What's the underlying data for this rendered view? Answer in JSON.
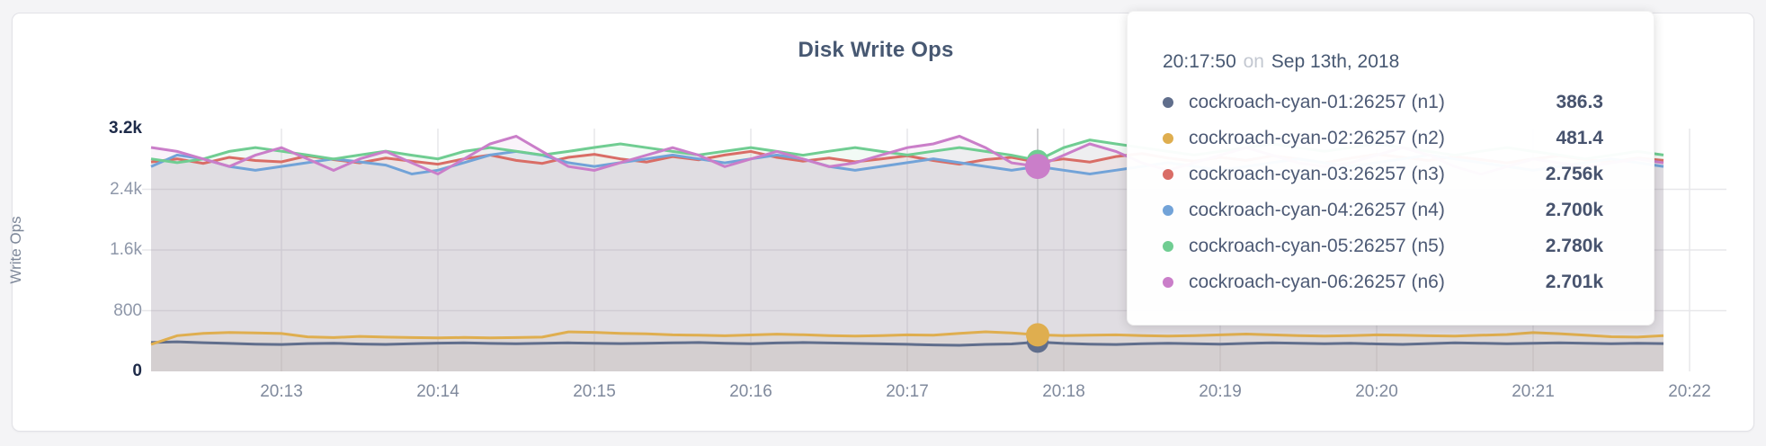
{
  "card": {
    "background": "#ffffff"
  },
  "tooltip": {
    "time": "20:17:50",
    "connector": "on",
    "date": "Sep 13th, 2018"
  },
  "chart_data": {
    "type": "line",
    "title": "Disk Write Ops",
    "ylabel": "Write Ops",
    "ylim": [
      0,
      3200
    ],
    "grid": true,
    "legend_position": "tooltip-overlay",
    "x_start_time": "20:12:10",
    "sample_interval_seconds": 10,
    "hover_time": "20:17:50",
    "x_ticks": [
      "20:13",
      "20:14",
      "20:15",
      "20:16",
      "20:17",
      "20:18",
      "20:19",
      "20:20",
      "20:21",
      "20:22"
    ],
    "y_ticks": [
      {
        "label": "3.2k",
        "value": 3200,
        "strong": true
      },
      {
        "label": "2.4k",
        "value": 2400,
        "strong": false
      },
      {
        "label": "1.6k",
        "value": 1600,
        "strong": false
      },
      {
        "label": "800",
        "value": 800,
        "strong": false
      },
      {
        "label": "0",
        "value": 0,
        "strong": true
      }
    ],
    "series": [
      {
        "name": "cockroach-cyan-01:26257 (n1)",
        "color": "#606e8c",
        "hover_value_label": "386.3",
        "hover_value": 386.3,
        "dot_radius": 12,
        "values": [
          380,
          390,
          378,
          368,
          358,
          354,
          366,
          371,
          360,
          355,
          365,
          372,
          376,
          369,
          364,
          370,
          376,
          371,
          366,
          370,
          376,
          381,
          371,
          364,
          374,
          381,
          375,
          369,
          363,
          357,
          349,
          344,
          356,
          361,
          386.3,
          368,
          359,
          354,
          364,
          371,
          364,
          359,
          369,
          376,
          371,
          365,
          371,
          361,
          355,
          366,
          376,
          371,
          364,
          370,
          376,
          371,
          365,
          371,
          366
        ]
      },
      {
        "name": "cockroach-cyan-02:26257 (n2)",
        "color": "#dfae4f",
        "hover_value_label": "481.4",
        "hover_value": 481.4,
        "dot_radius": 13,
        "values": [
          355,
          470,
          500,
          512,
          506,
          499,
          455,
          446,
          461,
          452,
          446,
          441,
          447,
          442,
          446,
          452,
          520,
          514,
          501,
          494,
          481,
          476,
          469,
          480,
          491,
          482,
          471,
          466,
          471,
          481,
          476,
          501,
          521,
          506,
          481.4,
          471,
          476,
          481,
          470,
          466,
          471,
          481,
          492,
          481,
          471,
          466,
          471,
          481,
          476,
          469,
          466,
          476,
          486,
          511,
          496,
          476,
          456,
          451,
          471
        ]
      },
      {
        "name": "cockroach-cyan-03:26257 (n3)",
        "color": "#d96d66",
        "hover_value_label": "2.756k",
        "hover_value": 2756,
        "dot_radius": 12,
        "values": [
          2760,
          2801,
          2741,
          2821,
          2779,
          2761,
          2841,
          2791,
          2749,
          2811,
          2771,
          2731,
          2801,
          2851,
          2781,
          2741,
          2821,
          2861,
          2801,
          2759,
          2831,
          2789,
          2851,
          2899,
          2821,
          2771,
          2811,
          2761,
          2801,
          2841,
          2779,
          2731,
          2791,
          2821,
          2756,
          2801,
          2759,
          2831,
          2871,
          2811,
          2771,
          2821,
          2781,
          2841,
          2801,
          2749,
          2811,
          2861,
          2821,
          2779,
          2831,
          2791,
          2749,
          2801,
          2841,
          2791,
          2759,
          2811,
          2781
        ]
      },
      {
        "name": "cockroach-cyan-04:26257 (n4)",
        "color": "#72a3d8",
        "hover_value_label": "2.700k",
        "hover_value": 2700,
        "dot_radius": 12,
        "values": [
          2700,
          2851,
          2801,
          2701,
          2651,
          2701,
          2751,
          2801,
          2761,
          2719,
          2601,
          2651,
          2751,
          2851,
          2899,
          2849,
          2751,
          2701,
          2751,
          2801,
          2851,
          2801,
          2749,
          2801,
          2851,
          2799,
          2701,
          2651,
          2701,
          2751,
          2801,
          2751,
          2701,
          2651,
          2700,
          2651,
          2601,
          2651,
          2701,
          2751,
          2701,
          2651,
          2701,
          2751,
          2801,
          2749,
          2701,
          2751,
          2801,
          2851,
          2799,
          2751,
          2701,
          2651,
          2701,
          2751,
          2801,
          2751,
          2701
        ]
      },
      {
        "name": "cockroach-cyan-05:26257 (n5)",
        "color": "#70cd92",
        "hover_value_label": "2.780k",
        "hover_value": 2780,
        "dot_radius": 12,
        "values": [
          2801,
          2751,
          2799,
          2899,
          2949,
          2901,
          2851,
          2799,
          2851,
          2901,
          2849,
          2801,
          2899,
          2949,
          2901,
          2851,
          2899,
          2951,
          2999,
          2949,
          2899,
          2851,
          2901,
          2949,
          2899,
          2849,
          2901,
          2949,
          2899,
          2851,
          2901,
          2949,
          2899,
          2849,
          2780,
          2949,
          3049,
          2999,
          2949,
          2899,
          2851,
          2899,
          2949,
          2999,
          2949,
          2901,
          2949,
          2999,
          2949,
          2899,
          2849,
          2901,
          2949,
          2899,
          2851,
          2801,
          2849,
          2899,
          2851
        ]
      },
      {
        "name": "cockroach-cyan-06:26257 (n6)",
        "color": "#ca7ec9",
        "hover_value_label": "2.701k",
        "hover_value": 2701,
        "dot_radius": 14,
        "values": [
          2951,
          2899,
          2799,
          2701,
          2849,
          2949,
          2799,
          2649,
          2801,
          2899,
          2749,
          2601,
          2799,
          2999,
          3099,
          2899,
          2701,
          2649,
          2751,
          2849,
          2949,
          2849,
          2699,
          2799,
          2899,
          2799,
          2699,
          2749,
          2851,
          2949,
          2999,
          3099,
          2949,
          2749,
          2701,
          2849,
          2999,
          2899,
          2749,
          2649,
          2749,
          2849,
          2949,
          2849,
          2749,
          2699,
          2749,
          2851,
          2949,
          2851,
          2699,
          2599,
          2699,
          2799,
          2749,
          2699,
          2749,
          2801,
          2749
        ]
      }
    ]
  }
}
